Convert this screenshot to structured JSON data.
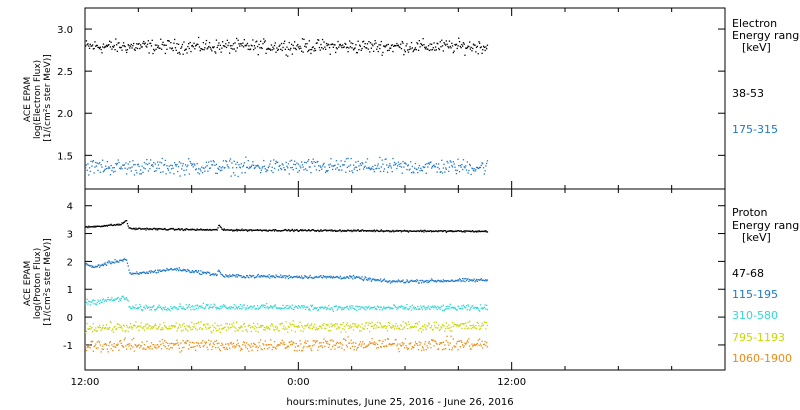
{
  "xaxis": {
    "label": "hours:minutes, June 25, 2016 - June 26, 2016",
    "ticks": [
      {
        "t": 0,
        "label": "12:00"
      },
      {
        "t": 12,
        "label": "0:00"
      },
      {
        "t": 24,
        "label": "12:00"
      }
    ],
    "range_hours": [
      0,
      36
    ],
    "minor_step_hours": 3
  },
  "chart_data": [
    {
      "type": "scatter",
      "panel": "electron",
      "ylabel_lines": [
        "ACE EPAM",
        "log(Electron Flux)",
        "[1/(cm²s ster MeV)]"
      ],
      "ylim": [
        1.1,
        3.25
      ],
      "yticks": [
        1.5,
        2.0,
        2.5,
        3.0
      ],
      "ytick_labels": [
        "1.5",
        "2.0",
        "2.5",
        "3.0"
      ],
      "legend_title": [
        "Electron",
        "Energy ranges",
        "[keV]"
      ],
      "x_range_hours": [
        0,
        22.6
      ],
      "series": [
        {
          "name": "38-53",
          "color": "#000000",
          "mean": 2.8,
          "noise": 0.08
        },
        {
          "name": "175-315",
          "color": "#1f78c8",
          "mean": 1.37,
          "noise": 0.09
        }
      ]
    },
    {
      "type": "scatter",
      "panel": "proton",
      "ylabel_lines": [
        "ACE EPAM",
        "log(Proton Flux)",
        "[1/(cm²s ster MeV)]"
      ],
      "ylim": [
        -1.9,
        4.6
      ],
      "yticks": [
        -1,
        0,
        1,
        2,
        3,
        4
      ],
      "ytick_labels": [
        "-1",
        "0",
        "1",
        "2",
        "3",
        "4"
      ],
      "legend_title": [
        "Proton",
        "Energy ranges",
        "[keV]"
      ],
      "x_range_hours": [
        0,
        22.6
      ],
      "series": [
        {
          "name": "47-68",
          "color": "#000000",
          "noise": 0.03,
          "profile": [
            [
              0,
              3.25
            ],
            [
              2,
              3.35
            ],
            [
              2.3,
              3.5
            ],
            [
              2.45,
              3.2
            ],
            [
              7.4,
              3.15
            ],
            [
              7.5,
              3.35
            ],
            [
              7.7,
              3.15
            ],
            [
              22.6,
              3.1
            ]
          ]
        },
        {
          "name": "115-195",
          "color": "#1f78c8",
          "noise": 0.06,
          "profile": [
            [
              0,
              1.95
            ],
            [
              0.4,
              1.8
            ],
            [
              1.5,
              2.0
            ],
            [
              2.3,
              2.1
            ],
            [
              2.5,
              1.55
            ],
            [
              5,
              1.75
            ],
            [
              7.4,
              1.55
            ],
            [
              7.5,
              1.7
            ],
            [
              7.7,
              1.5
            ],
            [
              15,
              1.45
            ],
            [
              17,
              1.3
            ],
            [
              22.6,
              1.35
            ]
          ]
        },
        {
          "name": "310-580",
          "color": "#33d6d6",
          "noise": 0.1,
          "profile": [
            [
              0,
              0.55
            ],
            [
              2.3,
              0.7
            ],
            [
              2.5,
              0.35
            ],
            [
              7.5,
              0.4
            ],
            [
              15,
              0.35
            ],
            [
              22.6,
              0.35
            ]
          ]
        },
        {
          "name": "795-1193",
          "color": "#c8d600",
          "noise": 0.17,
          "profile": [
            [
              0,
              -0.35
            ],
            [
              22.6,
              -0.3
            ]
          ]
        },
        {
          "name": "1060-1900",
          "color": "#ee8a10",
          "noise": 0.22,
          "profile": [
            [
              0,
              -1.0
            ],
            [
              22.6,
              -0.95
            ]
          ]
        }
      ]
    }
  ]
}
